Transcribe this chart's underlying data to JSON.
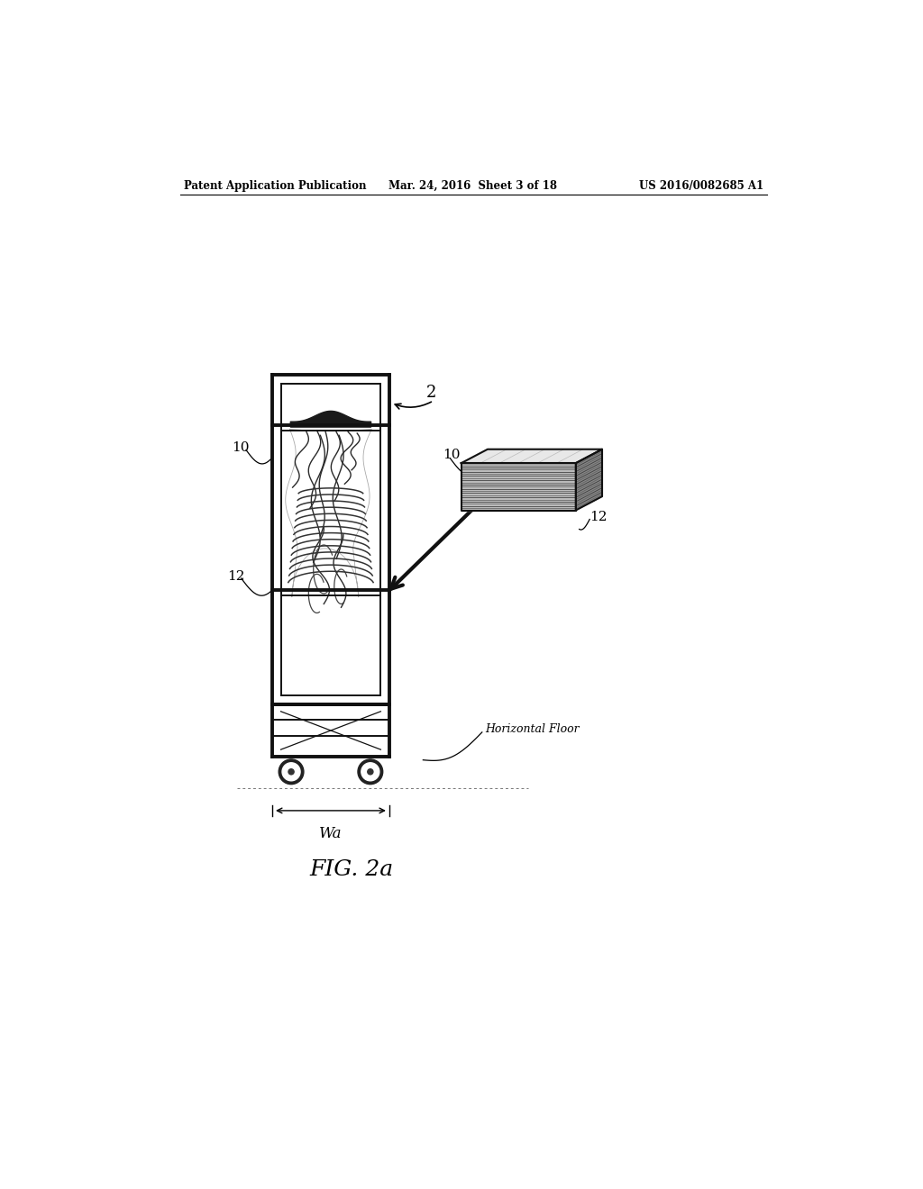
{
  "header_left": "Patent Application Publication",
  "header_mid": "Mar. 24, 2016  Sheet 3 of 18",
  "header_right": "US 2016/0082685 A1",
  "fig_label": "FIG. 2a",
  "label_2": "2",
  "label_10_left": "10",
  "label_10_right": "10",
  "label_12_left": "12",
  "label_12_right": "12",
  "label_wa": "Wa",
  "label_hfloor": "Horizontal Floor",
  "bg_color": "#ffffff",
  "line_color": "#000000",
  "frame_color": "#111111",
  "gray_light": "#dddddd",
  "gray_dark": "#444444",
  "gray_med": "#888888"
}
